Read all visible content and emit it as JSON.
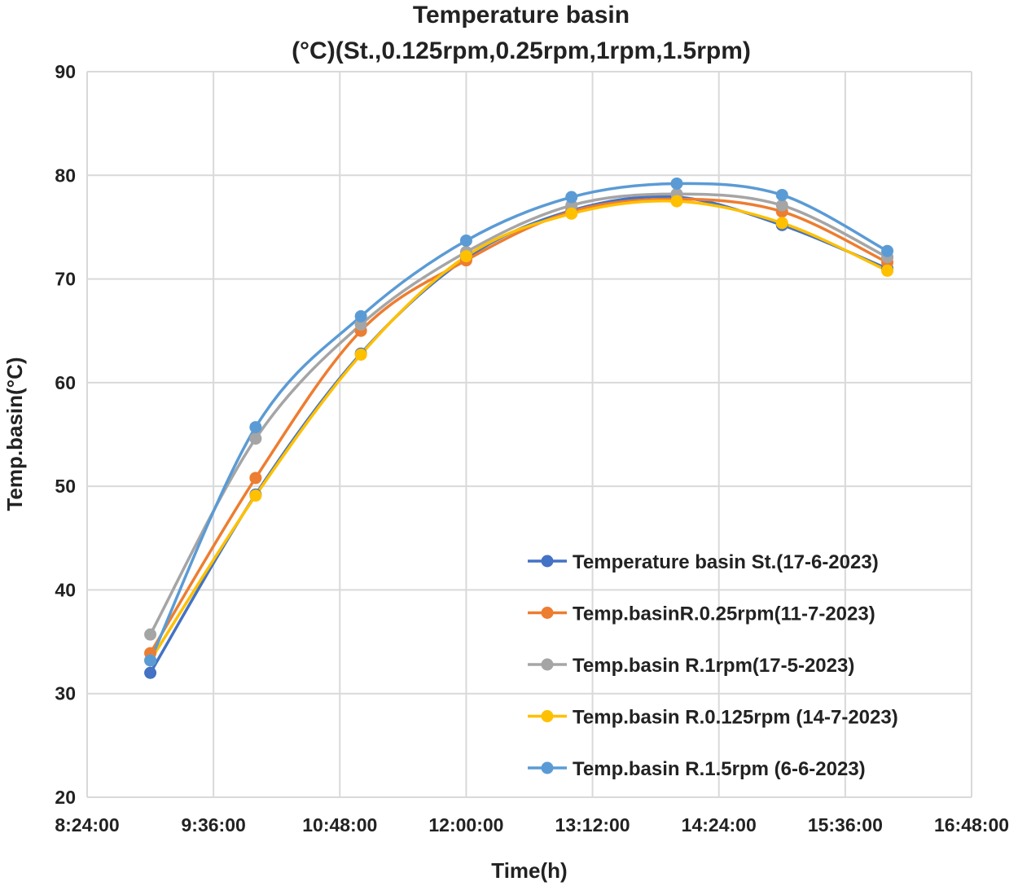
{
  "chart_data": {
    "type": "line",
    "title": [
      "Temperature basin",
      "(°C)(St.,0.125rpm,0.25rpm,1rpm,1.5rpm)"
    ],
    "xlabel": "Time(h)",
    "ylabel": "Temp.basin(°C)",
    "xlim_hours": [
      8.4,
      16.8
    ],
    "ylim": [
      20,
      90
    ],
    "y_ticks": [
      20,
      30,
      40,
      50,
      60,
      70,
      80,
      90
    ],
    "x_ticks": [
      {
        "value": 8.4,
        "label": "8:24:00"
      },
      {
        "value": 9.6,
        "label": "9:36:00"
      },
      {
        "value": 10.8,
        "label": "10:48:00"
      },
      {
        "value": 12.0,
        "label": "12:00:00"
      },
      {
        "value": 13.2,
        "label": "13:12:00"
      },
      {
        "value": 14.4,
        "label": "14:24:00"
      },
      {
        "value": 15.6,
        "label": "15:36:00"
      },
      {
        "value": 16.8,
        "label": "16:48:00"
      }
    ],
    "grid": true,
    "legend_position": "bottom-right",
    "x": [
      9.0,
      10.0,
      11.0,
      12.0,
      13.0,
      14.0,
      15.0,
      16.0
    ],
    "series": [
      {
        "name": "Temperature basin St.(17-6-2023)",
        "color": "#4472c4",
        "values": [
          32.0,
          49.2,
          62.8,
          72.0,
          76.6,
          77.9,
          75.2,
          71.0
        ]
      },
      {
        "name": "Temp.basinR.0.25rpm(11-7-2023)",
        "color": "#ed7d31",
        "values": [
          33.9,
          50.8,
          65.0,
          71.8,
          76.5,
          77.7,
          76.5,
          71.6
        ]
      },
      {
        "name": "Temp.basin R.1rpm(17-5-2023)",
        "color": "#a5a5a5",
        "values": [
          35.7,
          54.6,
          65.6,
          72.6,
          77.1,
          78.2,
          77.1,
          72.1
        ]
      },
      {
        "name": "Temp.basin R.0.125rpm (14-7-2023)",
        "color": "#ffc000",
        "values": [
          33.2,
          49.1,
          62.7,
          72.2,
          76.3,
          77.5,
          75.4,
          70.8
        ]
      },
      {
        "name": "Temp.basin R.1.5rpm (6-6-2023)",
        "color": "#5b9bd5",
        "values": [
          33.2,
          55.7,
          66.4,
          73.7,
          77.9,
          79.2,
          78.1,
          72.7
        ]
      }
    ]
  }
}
